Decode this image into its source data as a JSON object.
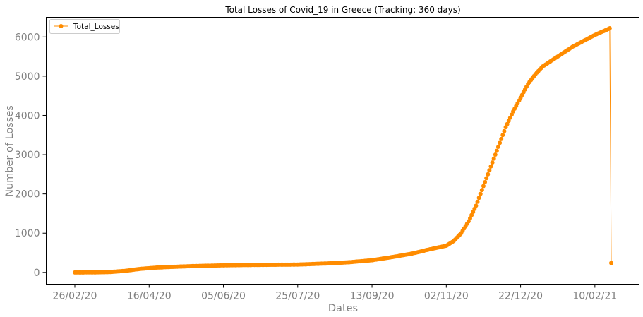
{
  "chart_data": {
    "type": "line",
    "title": "Total Losses of Covid_19 in Greece (Tracking: 360 days)",
    "xlabel": "Dates",
    "ylabel": "Number of Losses",
    "x_tick_labels": [
      "26/02/20",
      "16/04/20",
      "05/06/20",
      "25/07/20",
      "13/09/20",
      "02/11/20",
      "22/12/20",
      "10/02/21"
    ],
    "y_ticks": [
      0,
      1000,
      2000,
      3000,
      4000,
      5000,
      6000
    ],
    "ylim": [
      -300,
      6500
    ],
    "grid": false,
    "legend_position": "upper-left",
    "color": "#ff8c00",
    "series": [
      {
        "name": "Total_Losses",
        "date_start": "26/02/20",
        "date_end": "21/02/21",
        "keyframes": [
          [
            "26/02/20",
            0
          ],
          [
            "11/03/20",
            1
          ],
          [
            "21/03/20",
            10
          ],
          [
            "31/03/20",
            40
          ],
          [
            "10/04/20",
            90
          ],
          [
            "20/04/20",
            120
          ],
          [
            "01/05/20",
            140
          ],
          [
            "15/05/20",
            160
          ],
          [
            "05/06/20",
            180
          ],
          [
            "25/06/20",
            190
          ],
          [
            "25/07/20",
            200
          ],
          [
            "15/08/20",
            230
          ],
          [
            "29/08/20",
            260
          ],
          [
            "13/09/20",
            310
          ],
          [
            "25/09/20",
            380
          ],
          [
            "10/10/20",
            480
          ],
          [
            "22/10/20",
            590
          ],
          [
            "02/11/20",
            680
          ],
          [
            "07/11/20",
            800
          ],
          [
            "12/11/20",
            1000
          ],
          [
            "17/11/20",
            1300
          ],
          [
            "22/11/20",
            1700
          ],
          [
            "27/11/20",
            2200
          ],
          [
            "02/12/20",
            2700
          ],
          [
            "07/12/20",
            3200
          ],
          [
            "12/12/20",
            3700
          ],
          [
            "17/12/20",
            4100
          ],
          [
            "22/12/20",
            4450
          ],
          [
            "27/12/20",
            4800
          ],
          [
            "01/01/21",
            5050
          ],
          [
            "06/01/21",
            5250
          ],
          [
            "16/01/21",
            5500
          ],
          [
            "26/01/21",
            5750
          ],
          [
            "05/02/21",
            5950
          ],
          [
            "10/02/21",
            6050
          ],
          [
            "19/02/21",
            6200
          ],
          [
            "20/02/21",
            6220
          ],
          [
            "21/02/21",
            240
          ]
        ]
      }
    ]
  }
}
